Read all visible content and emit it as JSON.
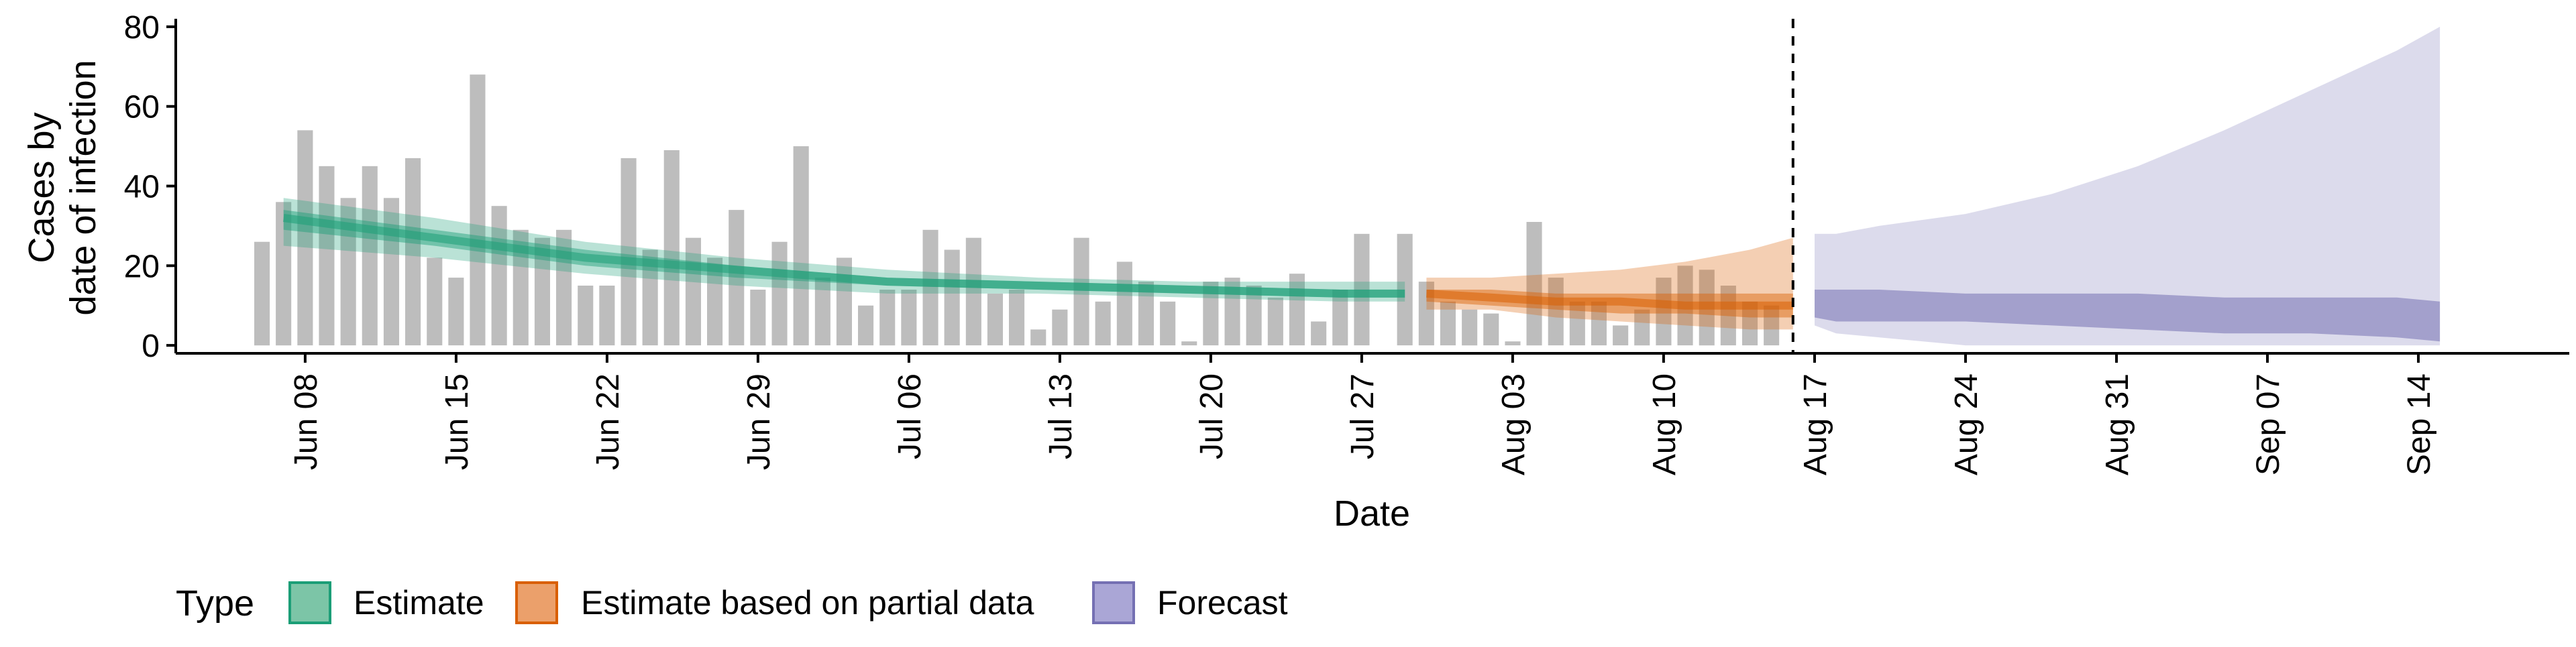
{
  "chart_data": {
    "type": "bar",
    "title": "",
    "xlabel": "Date",
    "ylabel_lines": [
      "Cases by",
      "date of infection"
    ],
    "ylim": [
      -2,
      82
    ],
    "yticks": [
      0,
      20,
      40,
      60,
      80
    ],
    "x_start_date": "2020-06-02",
    "x_end_date": "2020-09-21",
    "xtick_labels": [
      "Jun 08",
      "Jun 15",
      "Jun 22",
      "Jun 29",
      "Jul 06",
      "Jul 13",
      "Jul 20",
      "Jul 27",
      "Aug 03",
      "Aug 10",
      "Aug 17",
      "Aug 24",
      "Aug 31",
      "Sep 07",
      "Sep 14"
    ],
    "xtick_dates": [
      "2020-06-08",
      "2020-06-15",
      "2020-06-22",
      "2020-06-29",
      "2020-07-06",
      "2020-07-13",
      "2020-07-20",
      "2020-07-27",
      "2020-08-03",
      "2020-08-10",
      "2020-08-17",
      "2020-08-24",
      "2020-08-31",
      "2020-09-07",
      "2020-09-14"
    ],
    "forecast_start_date": "2020-08-16",
    "grid": false,
    "legend": {
      "title": "Type",
      "position": "bottom",
      "items": [
        {
          "label": "Estimate",
          "fill": "#7cc5a7",
          "stroke": "#1b9e77"
        },
        {
          "label": "Estimate based on partial data",
          "fill": "#eba06b",
          "stroke": "#d95f02"
        },
        {
          "label": "Forecast",
          "fill": "#aaa6d6",
          "stroke": "#7570b3"
        }
      ]
    },
    "bars": {
      "color": "#bdbdbd",
      "x": [
        "2020-06-06",
        "2020-06-07",
        "2020-06-08",
        "2020-06-09",
        "2020-06-10",
        "2020-06-11",
        "2020-06-12",
        "2020-06-13",
        "2020-06-14",
        "2020-06-15",
        "2020-06-16",
        "2020-06-17",
        "2020-06-18",
        "2020-06-19",
        "2020-06-20",
        "2020-06-21",
        "2020-06-22",
        "2020-06-23",
        "2020-06-24",
        "2020-06-25",
        "2020-06-26",
        "2020-06-27",
        "2020-06-28",
        "2020-06-29",
        "2020-06-30",
        "2020-07-01",
        "2020-07-02",
        "2020-07-03",
        "2020-07-04",
        "2020-07-05",
        "2020-07-06",
        "2020-07-07",
        "2020-07-08",
        "2020-07-09",
        "2020-07-10",
        "2020-07-11",
        "2020-07-12",
        "2020-07-13",
        "2020-07-14",
        "2020-07-15",
        "2020-07-16",
        "2020-07-17",
        "2020-07-18",
        "2020-07-19",
        "2020-07-20",
        "2020-07-21",
        "2020-07-22",
        "2020-07-23",
        "2020-07-24",
        "2020-07-25",
        "2020-07-26",
        "2020-07-27",
        "2020-07-28",
        "2020-07-29",
        "2020-07-30",
        "2020-07-31",
        "2020-08-01",
        "2020-08-02",
        "2020-08-03",
        "2020-08-04",
        "2020-08-05",
        "2020-08-06",
        "2020-08-07",
        "2020-08-08",
        "2020-08-09",
        "2020-08-10",
        "2020-08-11",
        "2020-08-12",
        "2020-08-13",
        "2020-08-14",
        "2020-08-15",
        "2020-08-16"
      ],
      "values": [
        26,
        36,
        54,
        45,
        37,
        45,
        37,
        47,
        22,
        17,
        68,
        35,
        29,
        27,
        29,
        15,
        15,
        47,
        24,
        49,
        27,
        22,
        34,
        14,
        26,
        50,
        17,
        22,
        10,
        14,
        14,
        29,
        24,
        27,
        13,
        14,
        4,
        9,
        27,
        11,
        21,
        16,
        11,
        1,
        16,
        17,
        15,
        12,
        18,
        6,
        14,
        28,
        0,
        28,
        16,
        11,
        9,
        8,
        1,
        31,
        17,
        11,
        11,
        5,
        9,
        17,
        20,
        19,
        15,
        11,
        10,
        0
      ]
    },
    "series": [
      {
        "name": "Estimate",
        "color": "#1b9e77",
        "x": [
          "2020-06-07",
          "2020-06-14",
          "2020-06-21",
          "2020-06-28",
          "2020-07-05",
          "2020-07-12",
          "2020-07-19",
          "2020-07-26",
          "2020-07-29"
        ],
        "median": [
          32,
          27,
          22,
          19,
          16,
          15,
          14,
          13,
          13
        ],
        "lower50": [
          29,
          25,
          20,
          17,
          15,
          14,
          13,
          12,
          12
        ],
        "upper50": [
          34,
          29,
          24,
          20,
          17,
          16,
          15,
          14,
          14
        ],
        "lower90": [
          25,
          22,
          18,
          15,
          13,
          13,
          12,
          11,
          11
        ],
        "upper90": [
          37,
          32,
          26,
          22,
          19,
          17,
          16,
          16,
          16
        ]
      },
      {
        "name": "Estimate based on partial data",
        "color": "#d95f02",
        "x": [
          "2020-07-30",
          "2020-08-02",
          "2020-08-05",
          "2020-08-08",
          "2020-08-11",
          "2020-08-14",
          "2020-08-16"
        ],
        "median": [
          13,
          12,
          11,
          11,
          10,
          10,
          10
        ],
        "lower50": [
          11,
          10,
          9,
          8,
          8,
          7,
          7
        ],
        "upper50": [
          14,
          14,
          13,
          13,
          13,
          13,
          13
        ],
        "lower90": [
          9,
          9,
          7,
          6,
          5,
          4,
          4
        ],
        "upper90": [
          17,
          17,
          18,
          19,
          21,
          24,
          27
        ]
      },
      {
        "name": "Forecast",
        "color": "#7570b3",
        "x": [
          "2020-08-17",
          "2020-08-18",
          "2020-08-20",
          "2020-08-24",
          "2020-08-28",
          "2020-09-01",
          "2020-09-05",
          "2020-09-09",
          "2020-09-13",
          "2020-09-15"
        ],
        "lower50": [
          7,
          6,
          6,
          6,
          5,
          4,
          3,
          3,
          2,
          1
        ],
        "upper50": [
          14,
          14,
          14,
          13,
          13,
          13,
          12,
          12,
          12,
          11
        ],
        "lower90": [
          5,
          3,
          2,
          0,
          0,
          0,
          0,
          0,
          0,
          0
        ],
        "upper90": [
          28,
          28,
          30,
          33,
          38,
          45,
          54,
          64,
          74,
          80
        ]
      }
    ]
  }
}
